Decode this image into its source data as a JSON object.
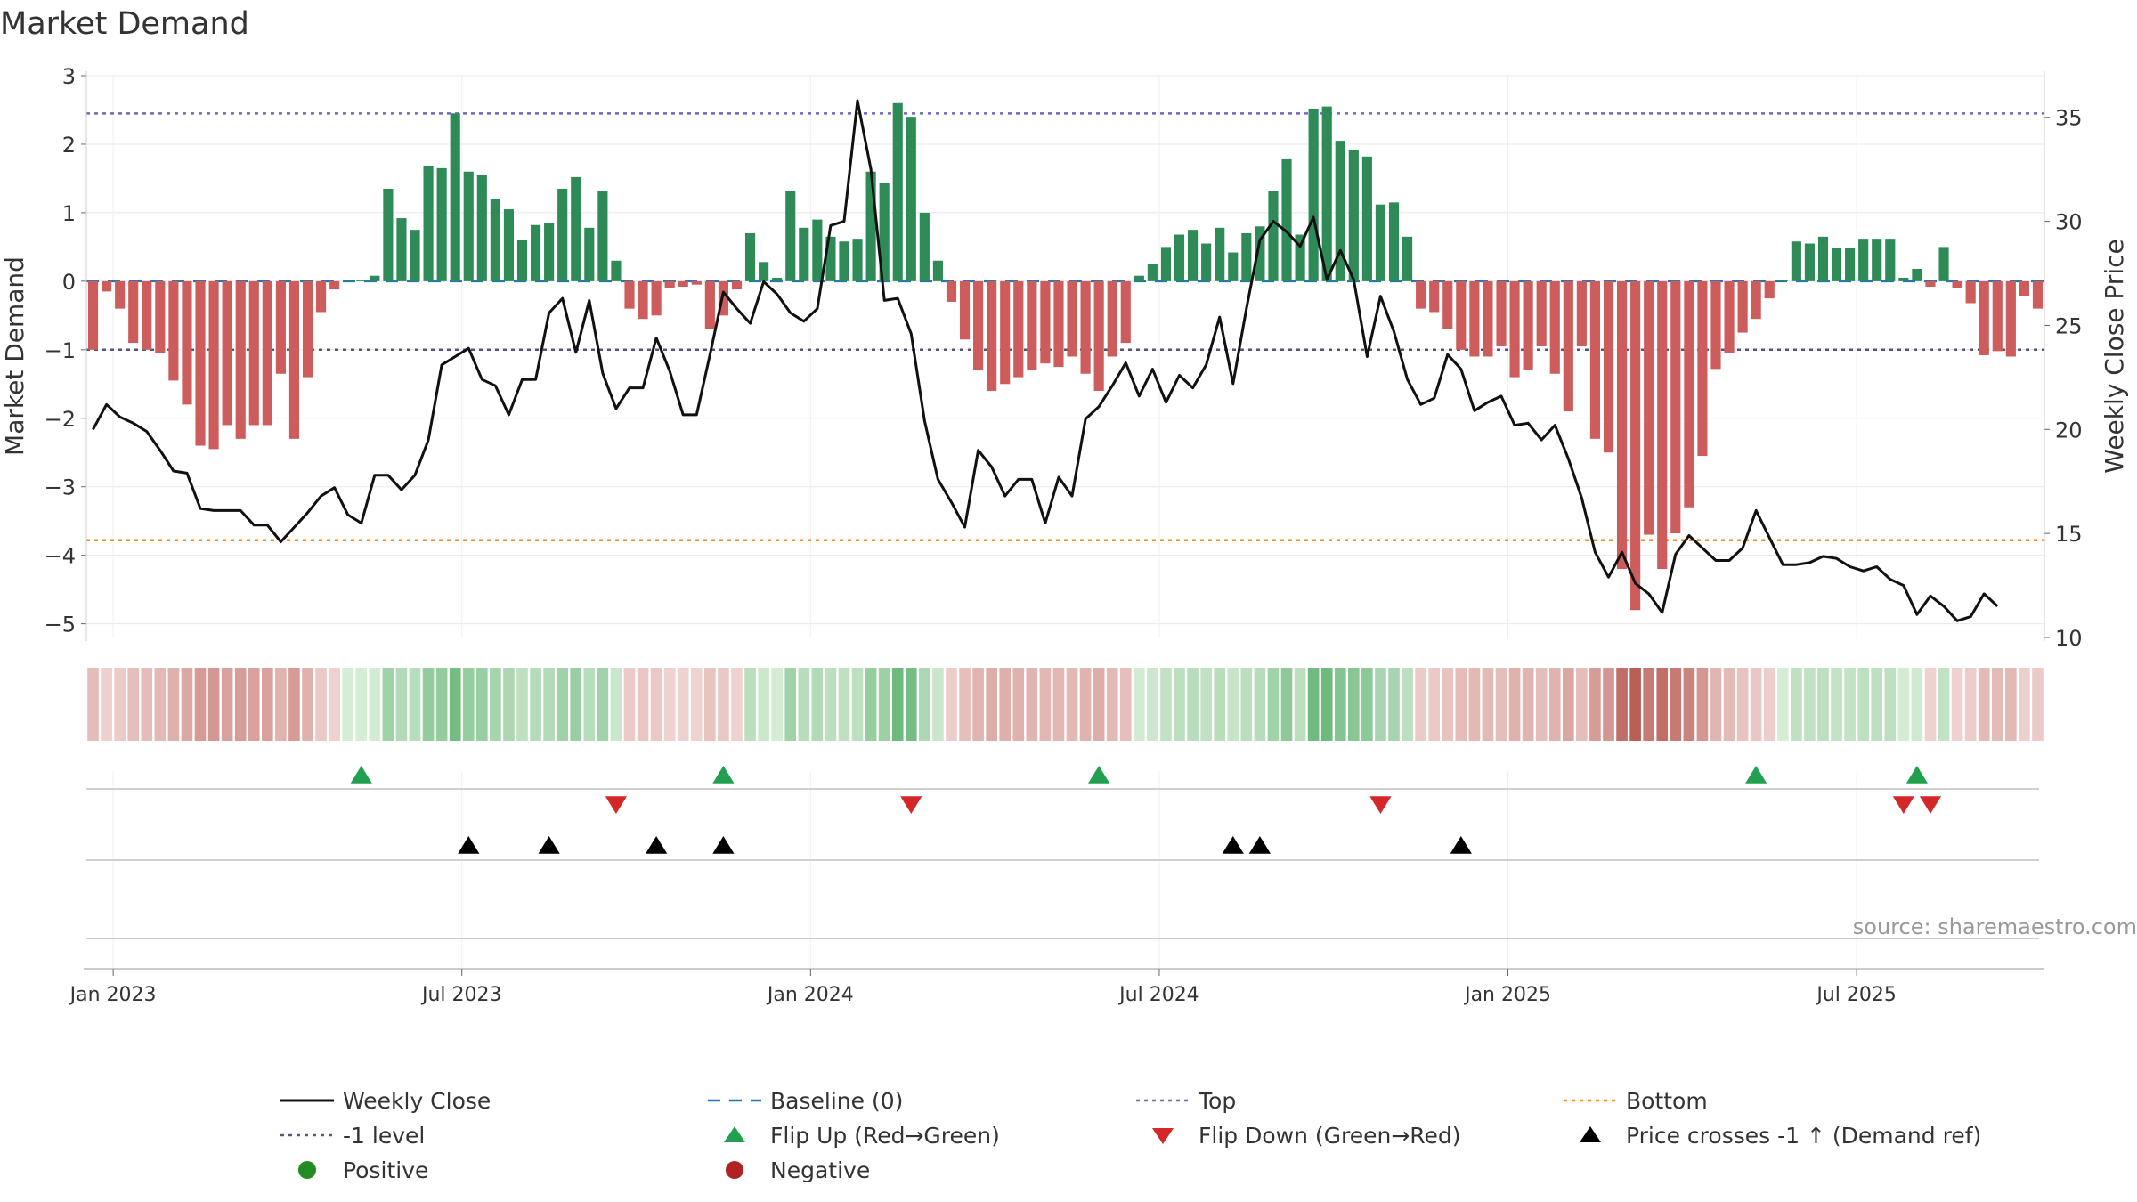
{
  "chart_data": {
    "type": "bar",
    "title": "Market Demand",
    "ylabel_left": "Market Demand",
    "ylabel_right": "Weekly Close Price",
    "source": "source: sharemaestro.com",
    "ylim_left": [
      -5.2,
      3.0
    ],
    "ylim_right": [
      10,
      37
    ],
    "yticks_left": [
      {
        "v": 3,
        "label": "3"
      },
      {
        "v": 2,
        "label": "2"
      },
      {
        "v": 1,
        "label": "1"
      },
      {
        "v": 0,
        "label": "0"
      },
      {
        "v": -1,
        "label": "−1"
      },
      {
        "v": -2,
        "label": "−2"
      },
      {
        "v": -3,
        "label": "−3"
      },
      {
        "v": -4,
        "label": "−4"
      },
      {
        "v": -5,
        "label": "−5"
      }
    ],
    "yticks_right": [
      {
        "v": 35,
        "label": "35"
      },
      {
        "v": 30,
        "label": "30"
      },
      {
        "v": 25,
        "label": "25"
      },
      {
        "v": 20,
        "label": "20"
      },
      {
        "v": 15,
        "label": "15"
      },
      {
        "v": 10,
        "label": "10"
      }
    ],
    "x_ticks": [
      {
        "week": 2,
        "label": "Jan 2023"
      },
      {
        "week": 28,
        "label": "Jul 2023"
      },
      {
        "week": 54,
        "label": "Jan 2024"
      },
      {
        "week": 80,
        "label": "Jul 2024"
      },
      {
        "week": 106,
        "label": "Jan 2025"
      },
      {
        "week": 132,
        "label": "Jul 2025"
      }
    ],
    "reference_lines": {
      "top": 2.45,
      "bottom": -3.78,
      "minus_one": -1,
      "baseline": 0
    },
    "demand": [
      -1.0,
      -0.15,
      -0.4,
      -0.9,
      -1.0,
      -1.05,
      -1.45,
      -1.8,
      -2.4,
      -2.45,
      -2.1,
      -2.3,
      -2.1,
      -2.1,
      -1.35,
      -2.3,
      -1.4,
      -0.45,
      -0.12,
      0.0,
      0.02,
      0.08,
      1.35,
      0.92,
      0.75,
      1.68,
      1.65,
      2.45,
      1.6,
      1.55,
      1.2,
      1.05,
      0.6,
      0.82,
      0.85,
      1.35,
      1.52,
      0.78,
      1.32,
      0.3,
      -0.4,
      -0.55,
      -0.5,
      -0.1,
      -0.08,
      -0.05,
      -0.7,
      -0.5,
      -0.12,
      0.7,
      0.28,
      0.05,
      1.32,
      0.78,
      0.9,
      0.65,
      0.58,
      0.62,
      1.6,
      1.43,
      2.6,
      2.4,
      1.0,
      0.3,
      -0.3,
      -0.85,
      -1.3,
      -1.6,
      -1.5,
      -1.4,
      -1.3,
      -1.2,
      -1.25,
      -1.1,
      -1.35,
      -1.6,
      -1.1,
      -0.9,
      0.08,
      0.25,
      0.5,
      0.68,
      0.75,
      0.55,
      0.78,
      0.42,
      0.7,
      0.8,
      1.32,
      1.78,
      0.68,
      2.52,
      2.55,
      2.05,
      1.92,
      1.82,
      1.12,
      1.15,
      0.65,
      -0.4,
      -0.45,
      -0.7,
      -1.0,
      -1.1,
      -1.1,
      -0.95,
      -1.4,
      -1.3,
      -0.95,
      -1.35,
      -1.9,
      -0.95,
      -2.3,
      -2.5,
      -4.2,
      -4.8,
      -3.7,
      -4.2,
      -3.68,
      -3.3,
      -2.55,
      -1.28,
      -1.05,
      -0.75,
      -0.55,
      -0.25,
      0.02,
      0.58,
      0.55,
      0.65,
      0.48,
      0.48,
      0.62,
      0.62,
      0.62,
      0.05,
      0.18,
      -0.08,
      0.5,
      -0.1,
      -0.32,
      -1.08,
      -1.02,
      -1.1,
      -0.22,
      -0.4
    ],
    "price": [
      20.0,
      21.2,
      20.6,
      20.3,
      19.9,
      19.0,
      18.0,
      17.9,
      16.2,
      16.1,
      16.1,
      16.1,
      15.4,
      15.4,
      14.6,
      15.3,
      16.0,
      16.8,
      17.2,
      15.9,
      15.5,
      17.8,
      17.8,
      17.1,
      17.8,
      19.5,
      23.1,
      23.5,
      23.9,
      22.4,
      22.1,
      20.7,
      22.4,
      22.4,
      25.6,
      26.3,
      23.7,
      26.2,
      22.7,
      21.0,
      22.0,
      22.0,
      24.4,
      22.8,
      20.7,
      20.7,
      23.6,
      26.6,
      25.8,
      25.1,
      27.1,
      26.5,
      25.6,
      25.2,
      25.8,
      29.8,
      30.0,
      35.8,
      32.5,
      26.2,
      26.3,
      24.6,
      20.4,
      17.6,
      16.5,
      15.3,
      19.0,
      18.2,
      16.8,
      17.6,
      17.6,
      15.5,
      17.7,
      16.8,
      20.5,
      21.1,
      22.1,
      23.2,
      21.6,
      22.9,
      21.3,
      22.6,
      22.0,
      23.1,
      25.4,
      22.2,
      25.8,
      29.1,
      30.0,
      29.5,
      28.8,
      30.2,
      27.2,
      28.6,
      27.2,
      23.5,
      26.4,
      24.7,
      22.4,
      21.2,
      21.5,
      23.6,
      22.9,
      20.9,
      21.3,
      21.6,
      20.2,
      20.3,
      19.5,
      20.2,
      18.6,
      16.7,
      14.1,
      12.9,
      14.1,
      12.6,
      12.1,
      11.2,
      14.0,
      14.9,
      14.3,
      13.7,
      13.7,
      14.3,
      16.1,
      14.8,
      13.5,
      13.5,
      13.6,
      13.9,
      13.8,
      13.4,
      13.2,
      13.4,
      12.8,
      12.5,
      11.1,
      12.0,
      11.5,
      10.8,
      11.0,
      12.1,
      11.5
    ],
    "flip_up_weeks": [
      20,
      47,
      75,
      124,
      136
    ],
    "flip_down_weeks": [
      39,
      61,
      96,
      135,
      137
    ],
    "price_cross_weeks": [
      28,
      34,
      42,
      47,
      85,
      87,
      102
    ],
    "legend": [
      {
        "key": "weekly_close",
        "label": "Weekly Close"
      },
      {
        "key": "baseline",
        "label": "Baseline (0)"
      },
      {
        "key": "top",
        "label": "Top"
      },
      {
        "key": "bottom",
        "label": "Bottom"
      },
      {
        "key": "minus_one",
        "label": "-1 level"
      },
      {
        "key": "flip_up",
        "label": "Flip Up (Red→Green)"
      },
      {
        "key": "flip_down",
        "label": "Flip Down (Green→Red)"
      },
      {
        "key": "price_cross",
        "label": "Price crosses -1 ↑ (Demand ref)"
      },
      {
        "key": "positive",
        "label": "Positive"
      },
      {
        "key": "negative",
        "label": "Negative"
      }
    ],
    "legend_placement": "bottom",
    "colors": {
      "positive_bar": "#2e8b57",
      "negative_bar": "#cd5c5c",
      "price_line": "#111111",
      "baseline": "#1f77b4",
      "top_line": "#6b6bb8",
      "bottom_line": "#ff8c1a",
      "minus_one_line": "#555577",
      "flip_up": "#22a050",
      "flip_down": "#d62728",
      "price_cross": "#000000",
      "positive_dot": "#228b22",
      "negative_dot": "#b22222",
      "axis_text": "#333333",
      "source_text": "#999999"
    }
  }
}
